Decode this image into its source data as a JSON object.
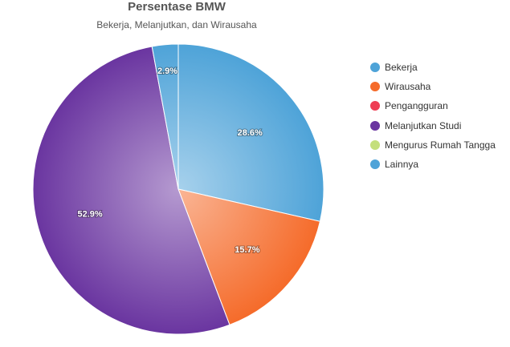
{
  "chart_data": {
    "type": "pie",
    "title": "Persentase BMW",
    "subtitle": "Bekerja, Melanjutkan, dan Wirausaha",
    "legend_position": "right",
    "slices": [
      {
        "name": "Bekerja",
        "value": 28.6,
        "label": "28.6%",
        "color": "#4ea3d8"
      },
      {
        "name": "Wirausaha",
        "value": 15.7,
        "label": "15.7%",
        "color": "#f56b2a"
      },
      {
        "name": "Pengangguran",
        "value": 0,
        "label": "",
        "color": "#ee3e54"
      },
      {
        "name": "Melanjutkan Studi",
        "value": 52.9,
        "label": "52.9%",
        "color": "#6a35a0"
      },
      {
        "name": "Mengurus Rumah Tangga",
        "value": 0,
        "label": "",
        "color": "#c4df7c"
      },
      {
        "name": "Lainnya",
        "value": 2.9,
        "label": "2.9%",
        "color": "#4ea3d8"
      }
    ]
  }
}
